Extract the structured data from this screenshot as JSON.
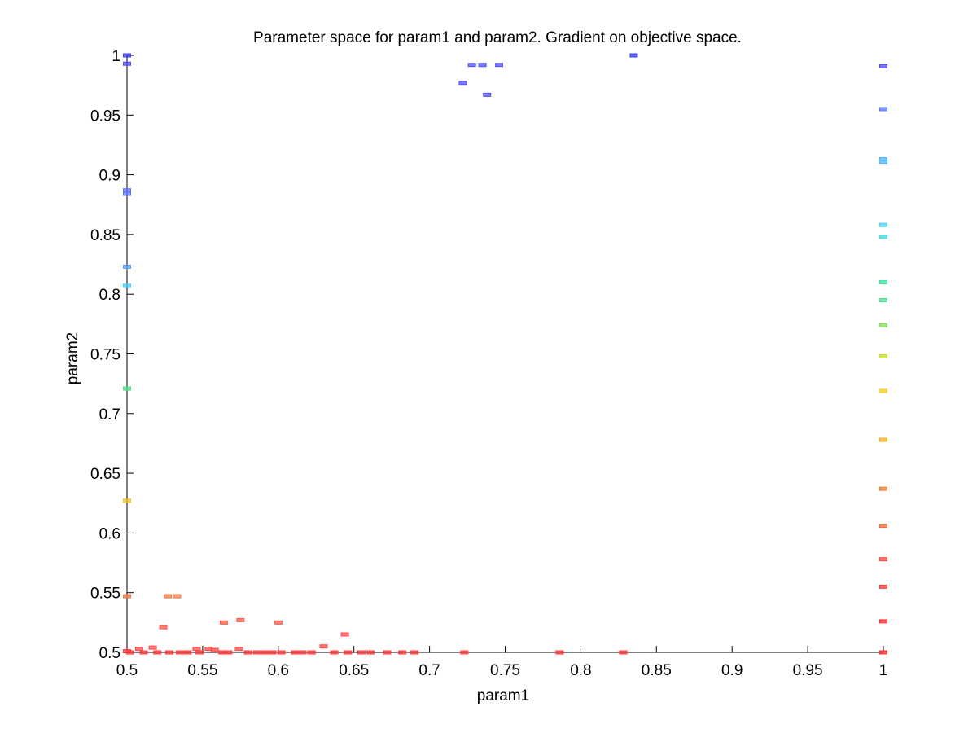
{
  "chart_data": {
    "type": "scatter",
    "title": "Parameter space for param1 and param2. Gradient on objective space.",
    "xlabel": "param1",
    "ylabel": "param2",
    "xlim": [
      0.5,
      1.0
    ],
    "ylim": [
      0.5,
      1.0
    ],
    "xticks": [
      "0.5",
      "0.55",
      "0.6",
      "0.65",
      "0.7",
      "0.75",
      "0.8",
      "0.85",
      "0.9",
      "0.95",
      "1"
    ],
    "yticks": [
      "0.5",
      "0.55",
      "0.6",
      "0.65",
      "0.7",
      "0.75",
      "0.8",
      "0.85",
      "0.9",
      "0.95",
      "1"
    ],
    "grid": false,
    "legend": "none",
    "marker": "small rectangle",
    "colormap": "objective gradient (blue → cyan → green → yellow → orange → red)",
    "points": [
      {
        "x": 0.5,
        "y": 1.0,
        "color": "#3a3aff"
      },
      {
        "x": 0.5,
        "y": 0.993,
        "color": "#4a4aff"
      },
      {
        "x": 0.5,
        "y": 0.887,
        "color": "#5a6aff"
      },
      {
        "x": 0.5,
        "y": 0.884,
        "color": "#5a78ff"
      },
      {
        "x": 0.5,
        "y": 0.823,
        "color": "#5aa0ff"
      },
      {
        "x": 0.5,
        "y": 0.807,
        "color": "#40d0ff"
      },
      {
        "x": 0.5,
        "y": 0.721,
        "color": "#50e080"
      },
      {
        "x": 0.5,
        "y": 0.627,
        "color": "#f0c020"
      },
      {
        "x": 0.5,
        "y": 0.547,
        "color": "#f07a3a"
      },
      {
        "x": 0.5,
        "y": 0.501,
        "color": "#ff3a3a"
      },
      {
        "x": 0.728,
        "y": 0.992,
        "color": "#5050ff"
      },
      {
        "x": 0.735,
        "y": 0.992,
        "color": "#5050ff"
      },
      {
        "x": 0.746,
        "y": 0.992,
        "color": "#5050ff"
      },
      {
        "x": 0.722,
        "y": 0.977,
        "color": "#5050ff"
      },
      {
        "x": 0.738,
        "y": 0.967,
        "color": "#5050ff"
      },
      {
        "x": 0.835,
        "y": 1.0,
        "color": "#3a3aff"
      },
      {
        "x": 1.0,
        "y": 0.991,
        "color": "#4a4aff"
      },
      {
        "x": 1.0,
        "y": 0.955,
        "color": "#5a78ff"
      },
      {
        "x": 1.0,
        "y": 0.913,
        "color": "#50b0ff"
      },
      {
        "x": 1.0,
        "y": 0.911,
        "color": "#50b8ff"
      },
      {
        "x": 1.0,
        "y": 0.858,
        "color": "#40d8f0"
      },
      {
        "x": 1.0,
        "y": 0.848,
        "color": "#40d8e0"
      },
      {
        "x": 1.0,
        "y": 0.81,
        "color": "#40e0a0"
      },
      {
        "x": 1.0,
        "y": 0.795,
        "color": "#50e090"
      },
      {
        "x": 1.0,
        "y": 0.774,
        "color": "#80e050"
      },
      {
        "x": 1.0,
        "y": 0.748,
        "color": "#c0e030"
      },
      {
        "x": 1.0,
        "y": 0.719,
        "color": "#f0d020"
      },
      {
        "x": 1.0,
        "y": 0.678,
        "color": "#f0b020"
      },
      {
        "x": 1.0,
        "y": 0.637,
        "color": "#f08030"
      },
      {
        "x": 1.0,
        "y": 0.606,
        "color": "#f06a3a"
      },
      {
        "x": 1.0,
        "y": 0.578,
        "color": "#ff4a3a"
      },
      {
        "x": 1.0,
        "y": 0.555,
        "color": "#ff3a3a"
      },
      {
        "x": 1.0,
        "y": 0.526,
        "color": "#ff3030"
      },
      {
        "x": 1.0,
        "y": 0.5,
        "color": "#ff2a2a"
      },
      {
        "x": 0.527,
        "y": 0.547,
        "color": "#f07a4a"
      },
      {
        "x": 0.533,
        "y": 0.547,
        "color": "#f07a4a"
      },
      {
        "x": 0.524,
        "y": 0.521,
        "color": "#ff5a4a"
      },
      {
        "x": 0.564,
        "y": 0.525,
        "color": "#ff5a4a"
      },
      {
        "x": 0.575,
        "y": 0.527,
        "color": "#ff5a4a"
      },
      {
        "x": 0.6,
        "y": 0.525,
        "color": "#ff5a4a"
      },
      {
        "x": 0.644,
        "y": 0.515,
        "color": "#ff4a4a"
      },
      {
        "x": 0.63,
        "y": 0.505,
        "color": "#ff4a4a"
      },
      {
        "x": 0.508,
        "y": 0.503,
        "color": "#ff4a4a"
      },
      {
        "x": 0.517,
        "y": 0.504,
        "color": "#ff4a4a"
      },
      {
        "x": 0.546,
        "y": 0.503,
        "color": "#ff4a4a"
      },
      {
        "x": 0.554,
        "y": 0.503,
        "color": "#ff4a4a"
      },
      {
        "x": 0.574,
        "y": 0.503,
        "color": "#ff4a4a"
      },
      {
        "x": 0.558,
        "y": 0.502,
        "color": "#ff4a4a"
      },
      {
        "x": 0.502,
        "y": 0.5,
        "color": "#ff3a3a"
      },
      {
        "x": 0.511,
        "y": 0.5,
        "color": "#ff3a3a"
      },
      {
        "x": 0.52,
        "y": 0.5,
        "color": "#ff3a3a"
      },
      {
        "x": 0.528,
        "y": 0.5,
        "color": "#ff3a3a"
      },
      {
        "x": 0.535,
        "y": 0.5,
        "color": "#ff3a3a"
      },
      {
        "x": 0.54,
        "y": 0.5,
        "color": "#ff3a3a"
      },
      {
        "x": 0.548,
        "y": 0.5,
        "color": "#ff3a3a"
      },
      {
        "x": 0.563,
        "y": 0.5,
        "color": "#ff3a3a"
      },
      {
        "x": 0.567,
        "y": 0.5,
        "color": "#ff3a3a"
      },
      {
        "x": 0.58,
        "y": 0.5,
        "color": "#ff3a3a"
      },
      {
        "x": 0.586,
        "y": 0.5,
        "color": "#ff3a3a"
      },
      {
        "x": 0.591,
        "y": 0.5,
        "color": "#ff3a3a"
      },
      {
        "x": 0.596,
        "y": 0.5,
        "color": "#ff3a3a"
      },
      {
        "x": 0.602,
        "y": 0.5,
        "color": "#ff3a3a"
      },
      {
        "x": 0.611,
        "y": 0.5,
        "color": "#ff3a3a"
      },
      {
        "x": 0.616,
        "y": 0.5,
        "color": "#ff3a3a"
      },
      {
        "x": 0.622,
        "y": 0.5,
        "color": "#ff3a3a"
      },
      {
        "x": 0.637,
        "y": 0.5,
        "color": "#ff3a3a"
      },
      {
        "x": 0.646,
        "y": 0.5,
        "color": "#ff3a3a"
      },
      {
        "x": 0.655,
        "y": 0.5,
        "color": "#ff3a3a"
      },
      {
        "x": 0.661,
        "y": 0.5,
        "color": "#ff3a3a"
      },
      {
        "x": 0.672,
        "y": 0.5,
        "color": "#ff3a3a"
      },
      {
        "x": 0.682,
        "y": 0.5,
        "color": "#ff3a3a"
      },
      {
        "x": 0.69,
        "y": 0.5,
        "color": "#ff3a3a"
      },
      {
        "x": 0.723,
        "y": 0.5,
        "color": "#ff3a3a"
      },
      {
        "x": 0.786,
        "y": 0.5,
        "color": "#ff3a3a"
      },
      {
        "x": 0.828,
        "y": 0.5,
        "color": "#ff3a3a"
      }
    ]
  }
}
